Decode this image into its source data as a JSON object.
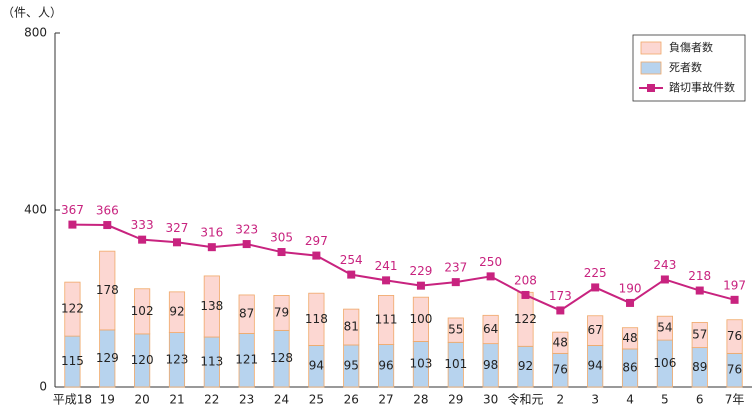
{
  "chart_data": {
    "type": "bar-line",
    "y_label": "（件、人）",
    "categories": [
      "平成18",
      "19",
      "20",
      "21",
      "22",
      "23",
      "24",
      "25",
      "26",
      "27",
      "28",
      "29",
      "30",
      "令和元",
      "2",
      "3",
      "4",
      "5",
      "6",
      "7年"
    ],
    "series": [
      {
        "name": "死者数",
        "type": "bar",
        "color": "#b7d3ee",
        "edge": "#f0a868",
        "values": [
          115,
          129,
          120,
          123,
          113,
          121,
          128,
          94,
          95,
          96,
          103,
          101,
          98,
          92,
          76,
          94,
          86,
          106,
          89,
          76
        ]
      },
      {
        "name": "負傷者数",
        "type": "bar",
        "color": "#fcd7d2",
        "edge": "#f0a868",
        "values": [
          122,
          178,
          102,
          92,
          138,
          87,
          79,
          118,
          81,
          111,
          100,
          55,
          64,
          122,
          48,
          67,
          48,
          54,
          57,
          76
        ]
      },
      {
        "name": "踏切事故件数",
        "type": "line",
        "color": "#c8237f",
        "values": [
          367,
          366,
          333,
          327,
          316,
          323,
          305,
          297,
          254,
          241,
          229,
          237,
          250,
          208,
          173,
          225,
          190,
          243,
          218,
          197
        ]
      }
    ],
    "ylim": [
      0,
      800
    ],
    "yticks": [
      0,
      400,
      800
    ],
    "stacked": true,
    "legend": "top-right"
  }
}
